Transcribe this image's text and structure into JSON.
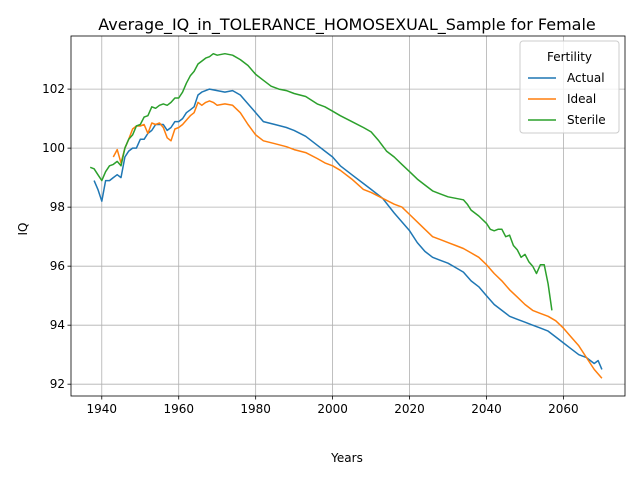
{
  "chart_data": {
    "type": "line",
    "title": "Average_IQ_in_TOLERANCE_HOMOSEXUAL_Sample for Female",
    "xlabel": "Years",
    "ylabel": "IQ",
    "xlim": [
      1932,
      2076
    ],
    "ylim": [
      91.6,
      103.8
    ],
    "xticks": [
      1940,
      1960,
      1980,
      2000,
      2020,
      2040,
      2060
    ],
    "yticks": [
      92,
      94,
      96,
      98,
      100,
      102
    ],
    "grid": true,
    "legend": {
      "title": "Fertility",
      "position": "top-right"
    },
    "series": [
      {
        "name": "Actual",
        "color": "#1f77b4",
        "points": [
          [
            1938,
            98.9
          ],
          [
            1939,
            98.6
          ],
          [
            1940,
            98.2
          ],
          [
            1941,
            98.9
          ],
          [
            1942,
            98.9
          ],
          [
            1943,
            99.0
          ],
          [
            1944,
            99.1
          ],
          [
            1945,
            99.0
          ],
          [
            1946,
            99.7
          ],
          [
            1947,
            99.9
          ],
          [
            1948,
            100.0
          ],
          [
            1949,
            100.0
          ],
          [
            1950,
            100.3
          ],
          [
            1951,
            100.3
          ],
          [
            1952,
            100.5
          ],
          [
            1953,
            100.6
          ],
          [
            1954,
            100.8
          ],
          [
            1955,
            100.8
          ],
          [
            1956,
            100.8
          ],
          [
            1957,
            100.6
          ],
          [
            1958,
            100.7
          ],
          [
            1959,
            100.9
          ],
          [
            1960,
            100.9
          ],
          [
            1961,
            101.0
          ],
          [
            1962,
            101.2
          ],
          [
            1963,
            101.3
          ],
          [
            1964,
            101.4
          ],
          [
            1965,
            101.8
          ],
          [
            1966,
            101.9
          ],
          [
            1967,
            101.95
          ],
          [
            1968,
            102.0
          ],
          [
            1970,
            101.95
          ],
          [
            1972,
            101.9
          ],
          [
            1974,
            101.95
          ],
          [
            1976,
            101.8
          ],
          [
            1978,
            101.5
          ],
          [
            1980,
            101.2
          ],
          [
            1982,
            100.9
          ],
          [
            1985,
            100.8
          ],
          [
            1988,
            100.7
          ],
          [
            1990,
            100.6
          ],
          [
            1993,
            100.4
          ],
          [
            1996,
            100.1
          ],
          [
            1998,
            99.9
          ],
          [
            2000,
            99.7
          ],
          [
            2002,
            99.4
          ],
          [
            2005,
            99.1
          ],
          [
            2008,
            98.8
          ],
          [
            2010,
            98.6
          ],
          [
            2013,
            98.3
          ],
          [
            2016,
            97.8
          ],
          [
            2018,
            97.5
          ],
          [
            2020,
            97.2
          ],
          [
            2022,
            96.8
          ],
          [
            2024,
            96.5
          ],
          [
            2026,
            96.3
          ],
          [
            2028,
            96.2
          ],
          [
            2030,
            96.1
          ],
          [
            2032,
            95.95
          ],
          [
            2034,
            95.8
          ],
          [
            2036,
            95.5
          ],
          [
            2038,
            95.3
          ],
          [
            2040,
            95.0
          ],
          [
            2042,
            94.7
          ],
          [
            2044,
            94.5
          ],
          [
            2046,
            94.3
          ],
          [
            2048,
            94.2
          ],
          [
            2050,
            94.1
          ],
          [
            2052,
            94.0
          ],
          [
            2054,
            93.9
          ],
          [
            2056,
            93.8
          ],
          [
            2058,
            93.6
          ],
          [
            2060,
            93.4
          ],
          [
            2062,
            93.2
          ],
          [
            2064,
            93.0
          ],
          [
            2066,
            92.9
          ],
          [
            2067,
            92.8
          ],
          [
            2068,
            92.7
          ],
          [
            2069,
            92.8
          ],
          [
            2070,
            92.5
          ]
        ]
      },
      {
        "name": "Ideal",
        "color": "#ff7f0e",
        "points": [
          [
            1943,
            99.7
          ],
          [
            1944,
            99.95
          ],
          [
            1945,
            99.5
          ],
          [
            1946,
            100.0
          ],
          [
            1947,
            100.3
          ],
          [
            1948,
            100.65
          ],
          [
            1949,
            100.75
          ],
          [
            1950,
            100.75
          ],
          [
            1951,
            100.8
          ],
          [
            1952,
            100.5
          ],
          [
            1953,
            100.85
          ],
          [
            1954,
            100.8
          ],
          [
            1955,
            100.85
          ],
          [
            1956,
            100.7
          ],
          [
            1957,
            100.35
          ],
          [
            1958,
            100.25
          ],
          [
            1959,
            100.65
          ],
          [
            1960,
            100.7
          ],
          [
            1961,
            100.8
          ],
          [
            1962,
            100.95
          ],
          [
            1963,
            101.1
          ],
          [
            1964,
            101.2
          ],
          [
            1965,
            101.55
          ],
          [
            1966,
            101.45
          ],
          [
            1967,
            101.55
          ],
          [
            1968,
            101.6
          ],
          [
            1969,
            101.55
          ],
          [
            1970,
            101.45
          ],
          [
            1972,
            101.5
          ],
          [
            1974,
            101.45
          ],
          [
            1976,
            101.2
          ],
          [
            1978,
            100.8
          ],
          [
            1980,
            100.45
          ],
          [
            1982,
            100.25
          ],
          [
            1985,
            100.15
          ],
          [
            1988,
            100.05
          ],
          [
            1990,
            99.95
          ],
          [
            1993,
            99.85
          ],
          [
            1996,
            99.65
          ],
          [
            1998,
            99.5
          ],
          [
            2000,
            99.4
          ],
          [
            2002,
            99.25
          ],
          [
            2005,
            98.95
          ],
          [
            2008,
            98.6
          ],
          [
            2010,
            98.5
          ],
          [
            2013,
            98.3
          ],
          [
            2016,
            98.1
          ],
          [
            2018,
            98.0
          ],
          [
            2020,
            97.75
          ],
          [
            2022,
            97.5
          ],
          [
            2024,
            97.25
          ],
          [
            2026,
            97.0
          ],
          [
            2028,
            96.9
          ],
          [
            2030,
            96.8
          ],
          [
            2032,
            96.7
          ],
          [
            2034,
            96.6
          ],
          [
            2036,
            96.45
          ],
          [
            2038,
            96.3
          ],
          [
            2040,
            96.05
          ],
          [
            2042,
            95.75
          ],
          [
            2044,
            95.5
          ],
          [
            2046,
            95.2
          ],
          [
            2048,
            94.95
          ],
          [
            2050,
            94.7
          ],
          [
            2052,
            94.5
          ],
          [
            2054,
            94.4
          ],
          [
            2056,
            94.3
          ],
          [
            2058,
            94.15
          ],
          [
            2060,
            93.9
          ],
          [
            2062,
            93.6
          ],
          [
            2064,
            93.3
          ],
          [
            2066,
            92.9
          ],
          [
            2068,
            92.5
          ],
          [
            2070,
            92.2
          ]
        ]
      },
      {
        "name": "Sterile",
        "color": "#2ca02c",
        "points": [
          [
            1937,
            99.35
          ],
          [
            1938,
            99.3
          ],
          [
            1939,
            99.1
          ],
          [
            1940,
            98.9
          ],
          [
            1941,
            99.2
          ],
          [
            1942,
            99.4
          ],
          [
            1943,
            99.45
          ],
          [
            1944,
            99.55
          ],
          [
            1945,
            99.4
          ],
          [
            1946,
            100.0
          ],
          [
            1947,
            100.3
          ],
          [
            1948,
            100.45
          ],
          [
            1949,
            100.75
          ],
          [
            1950,
            100.8
          ],
          [
            1951,
            101.05
          ],
          [
            1952,
            101.1
          ],
          [
            1953,
            101.4
          ],
          [
            1954,
            101.35
          ],
          [
            1955,
            101.45
          ],
          [
            1956,
            101.5
          ],
          [
            1957,
            101.45
          ],
          [
            1958,
            101.55
          ],
          [
            1959,
            101.7
          ],
          [
            1960,
            101.7
          ],
          [
            1961,
            101.9
          ],
          [
            1962,
            102.2
          ],
          [
            1963,
            102.45
          ],
          [
            1964,
            102.6
          ],
          [
            1965,
            102.85
          ],
          [
            1966,
            102.95
          ],
          [
            1967,
            103.05
          ],
          [
            1968,
            103.1
          ],
          [
            1969,
            103.2
          ],
          [
            1970,
            103.15
          ],
          [
            1972,
            103.2
          ],
          [
            1974,
            103.15
          ],
          [
            1976,
            103.0
          ],
          [
            1978,
            102.8
          ],
          [
            1980,
            102.5
          ],
          [
            1982,
            102.3
          ],
          [
            1984,
            102.1
          ],
          [
            1986,
            102.0
          ],
          [
            1988,
            101.95
          ],
          [
            1990,
            101.85
          ],
          [
            1993,
            101.75
          ],
          [
            1996,
            101.5
          ],
          [
            1998,
            101.4
          ],
          [
            2000,
            101.25
          ],
          [
            2002,
            101.1
          ],
          [
            2005,
            100.9
          ],
          [
            2008,
            100.7
          ],
          [
            2010,
            100.55
          ],
          [
            2012,
            100.25
          ],
          [
            2014,
            99.9
          ],
          [
            2016,
            99.7
          ],
          [
            2018,
            99.45
          ],
          [
            2020,
            99.2
          ],
          [
            2022,
            98.95
          ],
          [
            2024,
            98.75
          ],
          [
            2026,
            98.55
          ],
          [
            2028,
            98.45
          ],
          [
            2030,
            98.35
          ],
          [
            2032,
            98.3
          ],
          [
            2034,
            98.25
          ],
          [
            2035,
            98.1
          ],
          [
            2036,
            97.9
          ],
          [
            2038,
            97.7
          ],
          [
            2040,
            97.45
          ],
          [
            2041,
            97.25
          ],
          [
            2042,
            97.2
          ],
          [
            2043,
            97.25
          ],
          [
            2044,
            97.25
          ],
          [
            2045,
            97.0
          ],
          [
            2046,
            97.05
          ],
          [
            2047,
            96.7
          ],
          [
            2048,
            96.55
          ],
          [
            2049,
            96.3
          ],
          [
            2050,
            96.4
          ],
          [
            2051,
            96.15
          ],
          [
            2052,
            96.0
          ],
          [
            2053,
            95.75
          ],
          [
            2054,
            96.05
          ],
          [
            2055,
            96.05
          ],
          [
            2056,
            95.4
          ],
          [
            2057,
            94.5
          ]
        ]
      }
    ]
  }
}
